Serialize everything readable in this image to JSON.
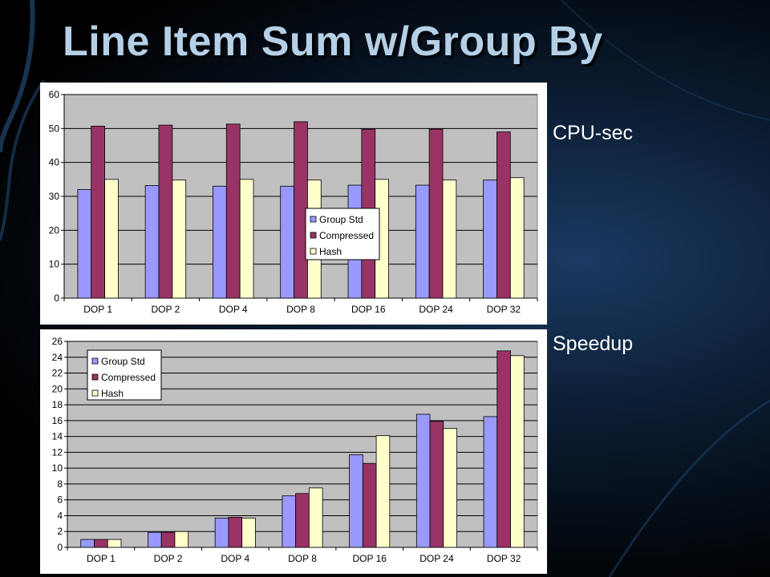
{
  "slide": {
    "title": "Line Item Sum w/Group By",
    "cpu_label": "CPU-sec",
    "speedup_label": "Speedup"
  },
  "colors": {
    "series": [
      "#9999ff",
      "#993366",
      "#ffffcc"
    ],
    "plot_background": "#c0c0c0",
    "title": "#b4cfe6"
  },
  "chart_data": [
    {
      "type": "bar",
      "categories": [
        "DOP 1",
        "DOP 2",
        "DOP 4",
        "DOP 8",
        "DOP 16",
        "DOP 24",
        "DOP 32"
      ],
      "series": [
        {
          "name": "Group Std",
          "values": [
            32,
            33.2,
            33,
            33,
            33.3,
            33.3,
            34.8
          ]
        },
        {
          "name": "Compressed",
          "values": [
            50.7,
            51,
            51.3,
            52,
            49.8,
            49.8,
            49
          ]
        },
        {
          "name": "Hash",
          "values": [
            35,
            34.8,
            35,
            34.8,
            35,
            34.8,
            35.5
          ]
        }
      ],
      "ylim": [
        0,
        60
      ],
      "yticks": [
        0,
        10,
        20,
        30,
        40,
        50,
        60
      ],
      "grid": true,
      "legend": "center-right"
    },
    {
      "type": "bar",
      "categories": [
        "DOP 1",
        "DOP 2",
        "DOP 4",
        "DOP 8",
        "DOP 16",
        "DOP 24",
        "DOP 32"
      ],
      "series": [
        {
          "name": "Group Std",
          "values": [
            1,
            1.9,
            3.7,
            6.5,
            11.7,
            16.8,
            16.5
          ]
        },
        {
          "name": "Compressed",
          "values": [
            1,
            1.9,
            3.8,
            6.8,
            10.6,
            15.9,
            24.8
          ]
        },
        {
          "name": "Hash",
          "values": [
            1,
            2,
            3.7,
            7.5,
            14.1,
            15,
            24.2
          ]
        }
      ],
      "ylim": [
        0,
        26
      ],
      "yticks": [
        0,
        2,
        4,
        6,
        8,
        10,
        12,
        14,
        16,
        18,
        20,
        22,
        24,
        26
      ],
      "grid": true,
      "legend": "top-left"
    }
  ]
}
